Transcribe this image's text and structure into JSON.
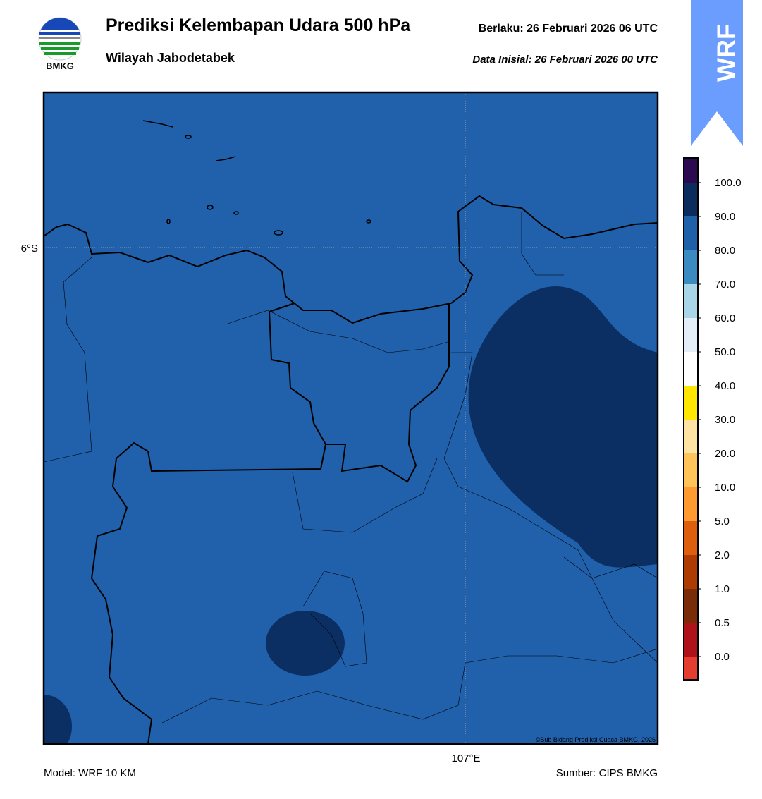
{
  "header": {
    "title": "Prediksi Kelembapan Udara 500 hPa",
    "subtitle": "Wilayah Jabodetabek",
    "valid": "Berlaku:  26 Februari 2026 06 UTC",
    "init": "Data Inisial:  26 Februari 2026 00 UTC",
    "logo_text": "BMKG",
    "badge": "WRF"
  },
  "map": {
    "lat_label": "6°S",
    "lon_label": "107°E",
    "credit": "©Sub Bidang Prediksi Cuaca BMKG, 2026"
  },
  "colorbar": {
    "labels": [
      "100.0",
      "90.0",
      "80.0",
      "70.0",
      "60.0",
      "50.0",
      "40.0",
      "30.0",
      "20.0",
      "10.0",
      "5.0",
      "2.0",
      "1.0",
      "0.5",
      "0.0"
    ],
    "colors": [
      "#2b0a4f",
      "#0b2c5c",
      "#1f60aa",
      "#3a8bc2",
      "#a9d5e8",
      "#e3eef8",
      "#ffffff",
      "#ffe600",
      "#ffe3a3",
      "#ffc35a",
      "#ff9a30",
      "#dd5f0e",
      "#ad3b02",
      "#7a2b08",
      "#b0121a",
      "#e53d2f"
    ]
  },
  "footer": {
    "model": "Model: WRF 10 KM",
    "source": "Sumber: CIPS BMKG"
  }
}
